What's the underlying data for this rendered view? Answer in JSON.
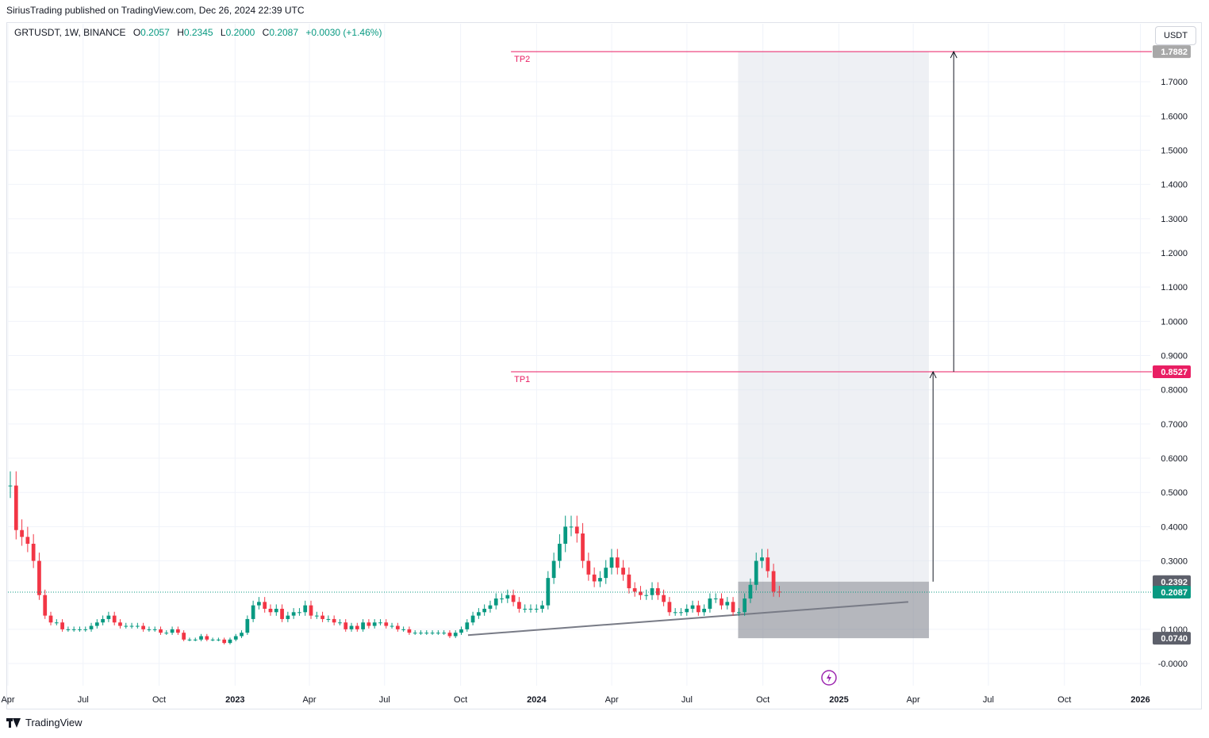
{
  "header": {
    "published": "SiriusTrading published on TradingView.com, Dec 26, 2024 22:39 UTC"
  },
  "legend": {
    "symbol": "GRTUSDT, 1W, BINANCE",
    "open_label": "O",
    "open": "0.2057",
    "high_label": "H",
    "high": "0.2345",
    "low_label": "L",
    "low": "0.2000",
    "close_label": "C",
    "close": "0.2087",
    "change": "+0.0030 (+1.46%)"
  },
  "currency_button": "USDT",
  "footer": {
    "brand": "TradingView"
  },
  "colors": {
    "up": "#089981",
    "down": "#f23645",
    "tp_line": "#e91e63",
    "grid": "#f0f3fa",
    "axis_text": "#131722"
  },
  "chart_data": {
    "type": "candlestick",
    "y_axis": {
      "min": -0.03,
      "max": 1.8,
      "ticks": [
        "-0.0000",
        "0.1000",
        "0.3000",
        "0.4000",
        "0.5000",
        "0.6000",
        "0.7000",
        "0.8000",
        "0.9000",
        "1.0000",
        "1.1000",
        "1.2000",
        "1.3000",
        "1.4000",
        "1.5000",
        "1.6000",
        "1.7000"
      ],
      "tick_values": [
        0,
        0.1,
        0.3,
        0.4,
        0.5,
        0.6,
        0.7,
        0.8,
        0.9,
        1.0,
        1.1,
        1.2,
        1.3,
        1.4,
        1.5,
        1.6,
        1.7
      ]
    },
    "x_axis": {
      "labels": [
        "Apr",
        "Jul",
        "Oct",
        "2023",
        "Apr",
        "Jul",
        "Oct",
        "2024",
        "Apr",
        "Jul",
        "Oct",
        "2025",
        "Apr",
        "Jul",
        "Oct",
        "2026"
      ],
      "label_dates": [
        "2022-04-01",
        "2022-07-01",
        "2022-10-01",
        "2023-01-01",
        "2023-04-01",
        "2023-07-01",
        "2023-10-01",
        "2024-01-01",
        "2024-04-01",
        "2024-07-01",
        "2024-10-01",
        "2025-01-01",
        "2025-04-01",
        "2025-07-01",
        "2025-10-01",
        "2026-01-01"
      ],
      "bold": [
        "2023",
        "2024",
        "2025",
        "2026"
      ],
      "range": [
        "2022-04-01",
        "2026-01-13"
      ]
    },
    "grid": true,
    "price_labels": [
      {
        "text": "1.7882",
        "value": 1.7882,
        "color": "#a8a8a8"
      },
      {
        "text": "0.8527",
        "value": 0.8527,
        "color": "#e91e63"
      },
      {
        "text": "0.2392",
        "value": 0.2392,
        "color": "#5d606b"
      },
      {
        "text": "0.2087",
        "value": 0.2087,
        "color": "#089981"
      },
      {
        "text": "0.0740",
        "value": 0.074,
        "color": "#5d606b"
      }
    ],
    "annotations": {
      "tp1": {
        "label": "TP1",
        "value": 0.8527,
        "start": "2023-12-01"
      },
      "tp2": {
        "label": "TP2",
        "value": 1.7882,
        "start": "2023-12-01"
      },
      "position_box": {
        "start": "2024-09-01",
        "end": "2025-04-20",
        "entry": 0.2392,
        "stop": 0.074,
        "target": 1.7882
      },
      "arrows": [
        {
          "date": "2025-04-25",
          "from": 0.2392,
          "to": 0.8527
        },
        {
          "date": "2025-05-20",
          "from": 0.8527,
          "to": 1.7882
        }
      ],
      "trendline": {
        "from_date": "2023-10-10",
        "from": 0.083,
        "to_date": "2025-03-26",
        "to": 0.18
      },
      "last_price": 0.2087
    },
    "weekly_closes_start": "2022-04-01",
    "weekly_closes": [
      0.52,
      0.39,
      0.37,
      0.35,
      0.3,
      0.2,
      0.14,
      0.12,
      0.12,
      0.1,
      0.1,
      0.1,
      0.1,
      0.1,
      0.11,
      0.12,
      0.13,
      0.14,
      0.12,
      0.11,
      0.11,
      0.11,
      0.11,
      0.1,
      0.1,
      0.1,
      0.09,
      0.09,
      0.1,
      0.09,
      0.07,
      0.07,
      0.07,
      0.08,
      0.07,
      0.07,
      0.07,
      0.06,
      0.07,
      0.08,
      0.09,
      0.13,
      0.17,
      0.18,
      0.16,
      0.15,
      0.16,
      0.13,
      0.14,
      0.15,
      0.15,
      0.17,
      0.14,
      0.14,
      0.13,
      0.13,
      0.12,
      0.12,
      0.1,
      0.11,
      0.1,
      0.12,
      0.11,
      0.12,
      0.12,
      0.11,
      0.11,
      0.1,
      0.1,
      0.09,
      0.09,
      0.09,
      0.09,
      0.09,
      0.09,
      0.09,
      0.08,
      0.09,
      0.1,
      0.12,
      0.14,
      0.15,
      0.16,
      0.17,
      0.19,
      0.19,
      0.2,
      0.18,
      0.16,
      0.16,
      0.16,
      0.16,
      0.17,
      0.25,
      0.3,
      0.35,
      0.4,
      0.4,
      0.38,
      0.3,
      0.26,
      0.24,
      0.25,
      0.28,
      0.31,
      0.28,
      0.26,
      0.22,
      0.21,
      0.2,
      0.2,
      0.22,
      0.2,
      0.18,
      0.15,
      0.15,
      0.15,
      0.16,
      0.17,
      0.15,
      0.16,
      0.19,
      0.19,
      0.17,
      0.18,
      0.15,
      0.15,
      0.19,
      0.23,
      0.3,
      0.31,
      0.27,
      0.21,
      0.2087
    ]
  }
}
